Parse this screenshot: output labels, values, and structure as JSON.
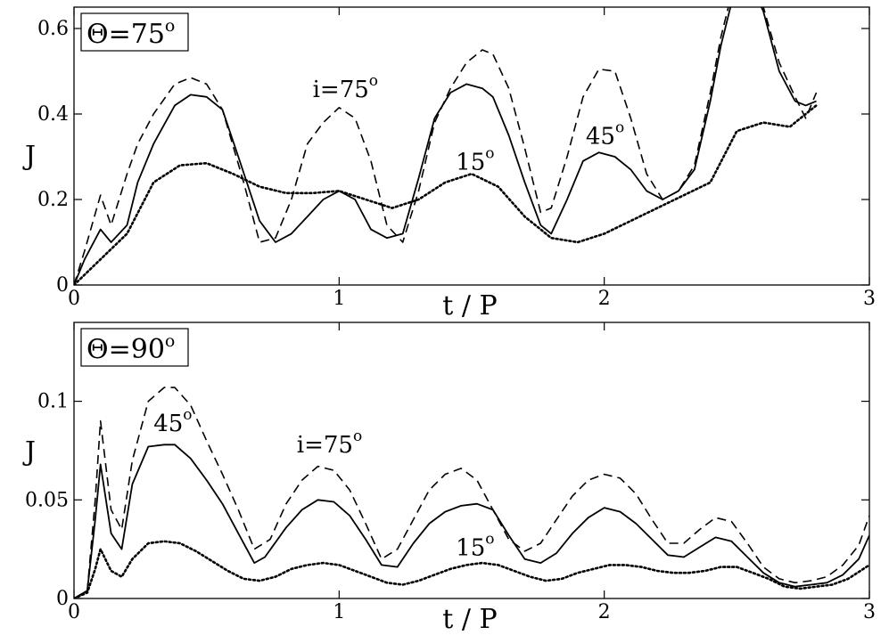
{
  "chart_data": [
    {
      "type": "line",
      "title": "Θ=75",
      "title_superscript": "o",
      "xlabel": "t / P",
      "ylabel": "J",
      "xlim": [
        0,
        3
      ],
      "ylim": [
        0,
        0.65
      ],
      "xticks": [
        0,
        1,
        2,
        3
      ],
      "xtick_labels": [
        "0",
        "1",
        "2",
        "3"
      ],
      "yticks": [
        0,
        0.2,
        0.4,
        0.6
      ],
      "ytick_labels": [
        "0",
        "0.2",
        "0.4",
        "0.6"
      ],
      "grid": false,
      "series": [
        {
          "name": "i=75",
          "style": "dashed",
          "x": [
            0,
            0.04,
            0.1,
            0.14,
            0.2,
            0.24,
            0.3,
            0.38,
            0.44,
            0.5,
            0.56,
            0.64,
            0.7,
            0.76,
            0.82,
            0.88,
            0.94,
            1.0,
            1.06,
            1.12,
            1.18,
            1.24,
            1.3,
            1.36,
            1.42,
            1.48,
            1.54,
            1.58,
            1.64,
            1.7,
            1.76,
            1.8,
            1.86,
            1.92,
            1.98,
            2.04,
            2.1,
            2.16,
            2.22,
            2.28,
            2.34,
            2.4,
            2.44,
            2.48,
            2.54,
            2.6,
            2.66,
            2.72,
            2.76,
            2.8
          ],
          "y": [
            0.0,
            0.08,
            0.21,
            0.14,
            0.26,
            0.33,
            0.4,
            0.47,
            0.485,
            0.47,
            0.41,
            0.24,
            0.1,
            0.11,
            0.2,
            0.33,
            0.38,
            0.415,
            0.39,
            0.29,
            0.14,
            0.1,
            0.22,
            0.38,
            0.46,
            0.52,
            0.55,
            0.54,
            0.46,
            0.32,
            0.17,
            0.18,
            0.3,
            0.44,
            0.505,
            0.5,
            0.39,
            0.26,
            0.2,
            0.22,
            0.28,
            0.45,
            0.58,
            0.68,
            0.72,
            0.65,
            0.52,
            0.44,
            0.39,
            0.45
          ]
        },
        {
          "name": "45",
          "style": "solid",
          "x": [
            0,
            0.04,
            0.1,
            0.14,
            0.2,
            0.24,
            0.3,
            0.38,
            0.44,
            0.5,
            0.56,
            0.62,
            0.7,
            0.76,
            0.82,
            0.88,
            0.94,
            1.0,
            1.06,
            1.12,
            1.18,
            1.24,
            1.3,
            1.36,
            1.42,
            1.48,
            1.54,
            1.58,
            1.64,
            1.7,
            1.76,
            1.8,
            1.86,
            1.92,
            1.98,
            2.04,
            2.1,
            2.16,
            2.22,
            2.28,
            2.34,
            2.4,
            2.44,
            2.48,
            2.54,
            2.6,
            2.66,
            2.72,
            2.76,
            2.8
          ],
          "y": [
            0.0,
            0.06,
            0.13,
            0.1,
            0.14,
            0.24,
            0.33,
            0.42,
            0.445,
            0.44,
            0.41,
            0.3,
            0.15,
            0.1,
            0.12,
            0.16,
            0.2,
            0.22,
            0.2,
            0.13,
            0.11,
            0.12,
            0.25,
            0.39,
            0.45,
            0.47,
            0.46,
            0.44,
            0.35,
            0.24,
            0.14,
            0.12,
            0.2,
            0.29,
            0.31,
            0.3,
            0.27,
            0.22,
            0.2,
            0.22,
            0.27,
            0.43,
            0.56,
            0.66,
            0.72,
            0.64,
            0.5,
            0.43,
            0.42,
            0.43
          ]
        },
        {
          "name": "15",
          "style": "dotted",
          "x": [
            0,
            0.1,
            0.2,
            0.3,
            0.4,
            0.5,
            0.6,
            0.7,
            0.8,
            0.9,
            1.0,
            1.1,
            1.2,
            1.3,
            1.4,
            1.5,
            1.6,
            1.7,
            1.8,
            1.9,
            2.0,
            2.1,
            2.2,
            2.3,
            2.4,
            2.5,
            2.6,
            2.7,
            2.8
          ],
          "y": [
            0.0,
            0.06,
            0.12,
            0.24,
            0.28,
            0.285,
            0.26,
            0.23,
            0.215,
            0.215,
            0.22,
            0.2,
            0.18,
            0.2,
            0.24,
            0.26,
            0.23,
            0.16,
            0.11,
            0.1,
            0.12,
            0.15,
            0.18,
            0.21,
            0.24,
            0.36,
            0.38,
            0.37,
            0.42
          ]
        }
      ],
      "annotations": [
        {
          "text": "i=75",
          "superscript": "o",
          "x": 0.9,
          "y": 0.44
        },
        {
          "text": "45",
          "superscript": "o",
          "x": 1.93,
          "y": 0.33
        },
        {
          "text": "15",
          "superscript": "o",
          "x": 1.44,
          "y": 0.27
        }
      ]
    },
    {
      "type": "line",
      "title": "Θ=90",
      "title_superscript": "o",
      "xlabel": "t / P",
      "ylabel": "J",
      "xlim": [
        0,
        3
      ],
      "ylim": [
        0,
        0.14
      ],
      "xticks": [
        0,
        1,
        2,
        3
      ],
      "xtick_labels": [
        "0",
        "1",
        "2",
        "3"
      ],
      "yticks": [
        0,
        0.05,
        0.1
      ],
      "ytick_labels": [
        "0",
        "0.05",
        "0.1"
      ],
      "grid": false,
      "series": [
        {
          "name": "i=75",
          "style": "dashed",
          "x": [
            0,
            0.05,
            0.08,
            0.1,
            0.14,
            0.18,
            0.22,
            0.28,
            0.34,
            0.38,
            0.44,
            0.5,
            0.56,
            0.62,
            0.68,
            0.74,
            0.8,
            0.86,
            0.92,
            0.98,
            1.04,
            1.1,
            1.16,
            1.22,
            1.28,
            1.34,
            1.4,
            1.46,
            1.52,
            1.58,
            1.64,
            1.7,
            1.76,
            1.82,
            1.88,
            1.94,
            2.0,
            2.06,
            2.12,
            2.18,
            2.24,
            2.3,
            2.36,
            2.42,
            2.48,
            2.54,
            2.6,
            2.66,
            2.72,
            2.78,
            2.84,
            2.9,
            2.96,
            3.0
          ],
          "y": [
            0.0,
            0.004,
            0.05,
            0.09,
            0.045,
            0.035,
            0.07,
            0.1,
            0.107,
            0.107,
            0.098,
            0.08,
            0.063,
            0.045,
            0.025,
            0.03,
            0.048,
            0.06,
            0.067,
            0.065,
            0.055,
            0.038,
            0.02,
            0.025,
            0.04,
            0.055,
            0.063,
            0.066,
            0.06,
            0.045,
            0.03,
            0.024,
            0.028,
            0.04,
            0.052,
            0.06,
            0.063,
            0.061,
            0.053,
            0.04,
            0.028,
            0.028,
            0.035,
            0.041,
            0.039,
            0.028,
            0.016,
            0.01,
            0.008,
            0.009,
            0.011,
            0.017,
            0.027,
            0.042
          ]
        },
        {
          "name": "45",
          "style": "solid",
          "x": [
            0,
            0.05,
            0.08,
            0.1,
            0.14,
            0.18,
            0.22,
            0.28,
            0.34,
            0.38,
            0.44,
            0.5,
            0.56,
            0.62,
            0.68,
            0.72,
            0.8,
            0.86,
            0.92,
            0.98,
            1.04,
            1.1,
            1.16,
            1.22,
            1.28,
            1.34,
            1.4,
            1.46,
            1.52,
            1.58,
            1.64,
            1.7,
            1.76,
            1.82,
            1.88,
            1.94,
            2.0,
            2.06,
            2.12,
            2.18,
            2.24,
            2.3,
            2.36,
            2.42,
            2.48,
            2.54,
            2.6,
            2.66,
            2.72,
            2.78,
            2.84,
            2.9,
            2.96,
            3.0
          ],
          "y": [
            0.0,
            0.004,
            0.04,
            0.068,
            0.033,
            0.025,
            0.058,
            0.077,
            0.078,
            0.078,
            0.071,
            0.06,
            0.048,
            0.033,
            0.018,
            0.021,
            0.036,
            0.045,
            0.05,
            0.049,
            0.042,
            0.03,
            0.017,
            0.016,
            0.028,
            0.038,
            0.044,
            0.047,
            0.048,
            0.045,
            0.032,
            0.02,
            0.018,
            0.023,
            0.033,
            0.041,
            0.046,
            0.044,
            0.038,
            0.03,
            0.022,
            0.021,
            0.026,
            0.031,
            0.029,
            0.021,
            0.013,
            0.008,
            0.006,
            0.007,
            0.008,
            0.012,
            0.02,
            0.032
          ]
        },
        {
          "name": "15",
          "style": "dotted",
          "x": [
            0,
            0.05,
            0.08,
            0.1,
            0.14,
            0.18,
            0.22,
            0.28,
            0.34,
            0.4,
            0.46,
            0.52,
            0.58,
            0.64,
            0.7,
            0.76,
            0.82,
            0.88,
            0.94,
            1.0,
            1.06,
            1.12,
            1.18,
            1.24,
            1.3,
            1.36,
            1.42,
            1.48,
            1.54,
            1.6,
            1.66,
            1.72,
            1.78,
            1.84,
            1.9,
            1.96,
            2.02,
            2.08,
            2.14,
            2.2,
            2.26,
            2.32,
            2.38,
            2.44,
            2.5,
            2.56,
            2.62,
            2.68,
            2.74,
            2.8,
            2.86,
            2.92,
            3.0
          ],
          "y": [
            0.0,
            0.003,
            0.015,
            0.025,
            0.014,
            0.011,
            0.02,
            0.028,
            0.029,
            0.028,
            0.024,
            0.019,
            0.014,
            0.01,
            0.009,
            0.011,
            0.015,
            0.017,
            0.018,
            0.017,
            0.014,
            0.011,
            0.008,
            0.007,
            0.009,
            0.012,
            0.015,
            0.017,
            0.018,
            0.017,
            0.014,
            0.011,
            0.009,
            0.01,
            0.013,
            0.015,
            0.017,
            0.017,
            0.016,
            0.014,
            0.013,
            0.013,
            0.014,
            0.016,
            0.016,
            0.013,
            0.01,
            0.006,
            0.005,
            0.006,
            0.007,
            0.01,
            0.017
          ]
        }
      ],
      "annotations": [
        {
          "text": "45",
          "superscript": "o",
          "x": 0.3,
          "y": 0.085
        },
        {
          "text": "i=75",
          "superscript": "o",
          "x": 0.84,
          "y": 0.074
        },
        {
          "text": "15",
          "superscript": "o",
          "x": 1.44,
          "y": 0.022
        }
      ]
    }
  ]
}
